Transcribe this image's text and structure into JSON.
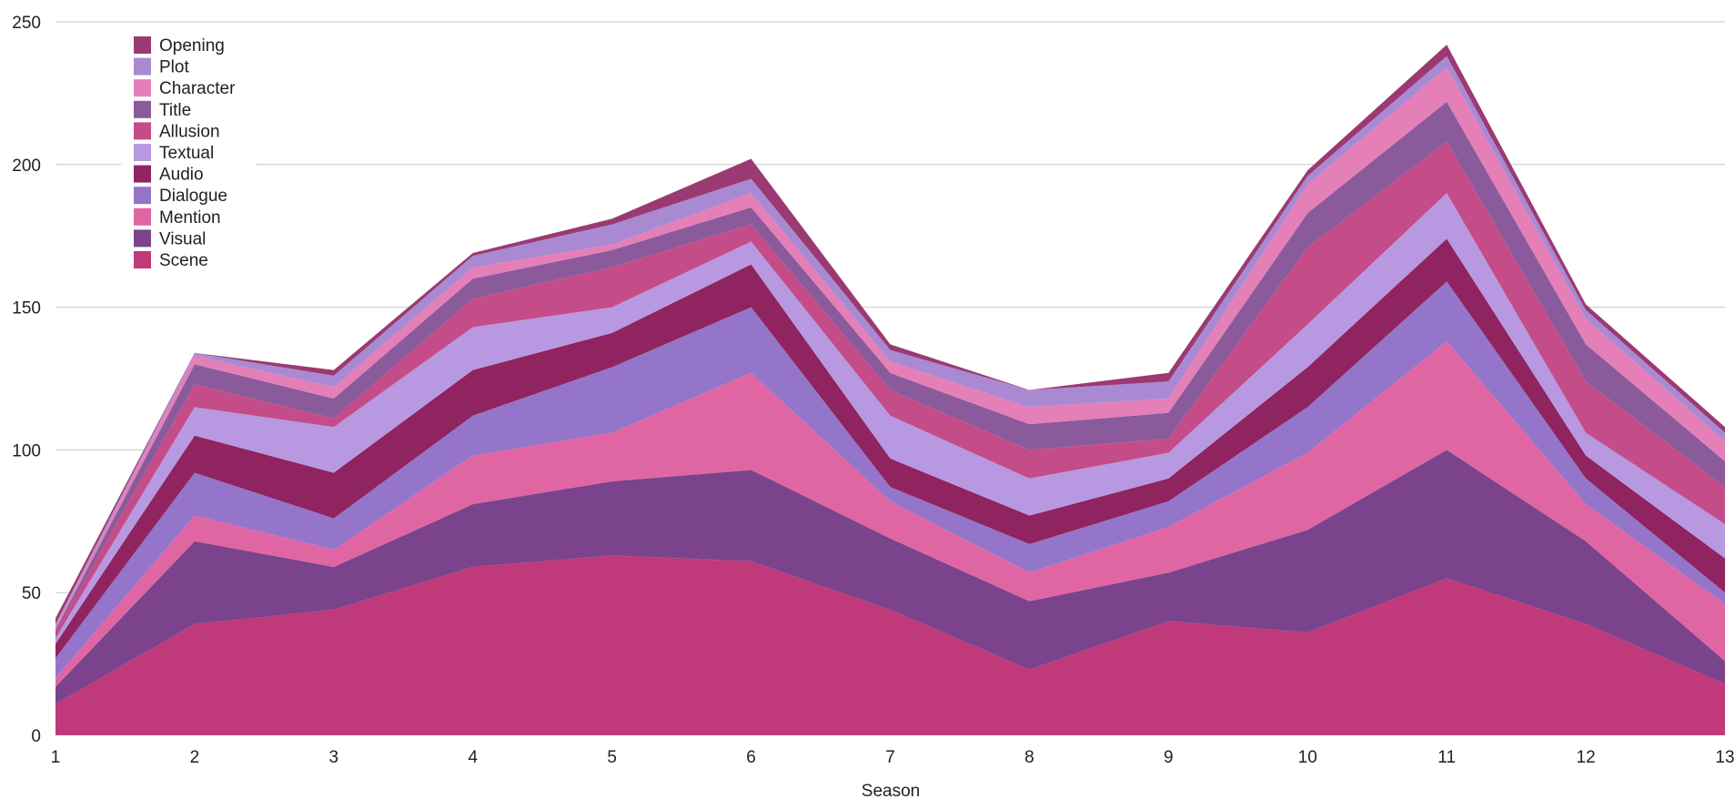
{
  "colors": {
    "grid": "#c8c8c8",
    "axis_text": "#222222"
  },
  "chart_data": {
    "type": "area",
    "stacked": true,
    "title": "",
    "xlabel": "Season",
    "ylabel": "",
    "x": [
      1,
      2,
      3,
      4,
      5,
      6,
      7,
      8,
      9,
      10,
      11,
      12,
      13
    ],
    "xticks": [
      "1",
      "2",
      "3",
      "4",
      "5",
      "6",
      "7",
      "8",
      "9",
      "10",
      "11",
      "12",
      "13"
    ],
    "ylim": [
      0,
      250
    ],
    "yticks": [
      0,
      50,
      100,
      150,
      200,
      250
    ],
    "grid": true,
    "legend_position": "top-left",
    "series": [
      {
        "name": "Scene",
        "color": "#c0397a",
        "values": [
          11,
          39,
          44,
          59,
          63,
          61,
          44,
          23,
          40,
          36,
          55,
          39,
          18
        ]
      },
      {
        "name": "Visual",
        "color": "#7b438c",
        "values": [
          6,
          29,
          15,
          22,
          26,
          32,
          25,
          24,
          17,
          36,
          45,
          29,
          8
        ]
      },
      {
        "name": "Mention",
        "color": "#e066a3",
        "values": [
          3,
          9,
          6,
          17,
          17,
          34,
          13,
          10,
          16,
          27,
          38,
          13,
          20
        ]
      },
      {
        "name": "Dialogue",
        "color": "#9575c9",
        "values": [
          7,
          15,
          11,
          14,
          23,
          23,
          5,
          10,
          9,
          16,
          21,
          9,
          4
        ]
      },
      {
        "name": "Audio",
        "color": "#8f2460",
        "values": [
          5,
          13,
          16,
          16,
          12,
          15,
          10,
          10,
          8,
          14,
          15,
          8,
          12
        ]
      },
      {
        "name": "Textual",
        "color": "#b898e0",
        "values": [
          2,
          10,
          16,
          15,
          9,
          8,
          15,
          13,
          9,
          15,
          16,
          8,
          12
        ]
      },
      {
        "name": "Allusion",
        "color": "#c44c88",
        "values": [
          2,
          8,
          3,
          10,
          14,
          6,
          9,
          10,
          5,
          27,
          18,
          18,
          13
        ]
      },
      {
        "name": "Title",
        "color": "#8b5a9b",
        "values": [
          1,
          7,
          7,
          7,
          6,
          6,
          6,
          9,
          9,
          12,
          14,
          13,
          9
        ]
      },
      {
        "name": "Character",
        "color": "#e47fb8",
        "values": [
          1,
          3,
          4,
          4,
          2,
          5,
          4,
          6,
          5,
          10,
          12,
          9,
          7
        ]
      },
      {
        "name": "Plot",
        "color": "#a98ad2",
        "values": [
          1,
          1,
          4,
          4,
          7,
          5,
          4,
          6,
          6,
          3,
          4,
          3,
          3
        ]
      },
      {
        "name": "Opening",
        "color": "#9b3a72",
        "values": [
          2,
          0,
          2,
          1,
          2,
          7,
          2,
          0,
          3,
          2,
          4,
          2,
          2
        ]
      }
    ]
  }
}
